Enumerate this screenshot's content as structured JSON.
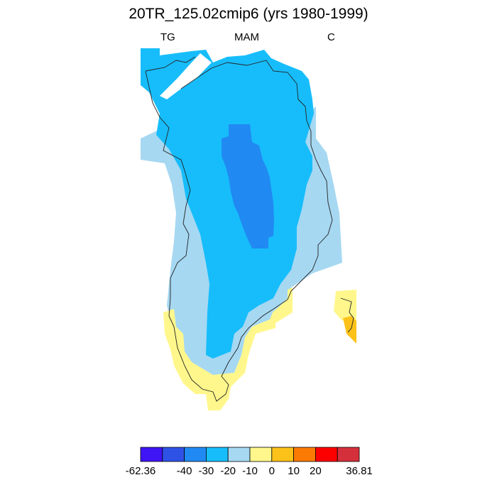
{
  "title": "20TR_125.02cmip6 (yrs 1980-1999)",
  "left_label": "TG",
  "center_label": "MAM",
  "right_label": "C",
  "colorbar": {
    "colors": [
      "#3f14f5",
      "#2f52e6",
      "#2189f2",
      "#17bdfb",
      "#a6d8f2",
      "#fff78c",
      "#fdc21a",
      "#fb7a04",
      "#fc0000",
      "#d4303b"
    ],
    "labels": [
      "-62.36",
      "-40",
      "-30",
      "-20",
      "-10",
      "0",
      "10",
      "20",
      "36.81"
    ]
  }
}
